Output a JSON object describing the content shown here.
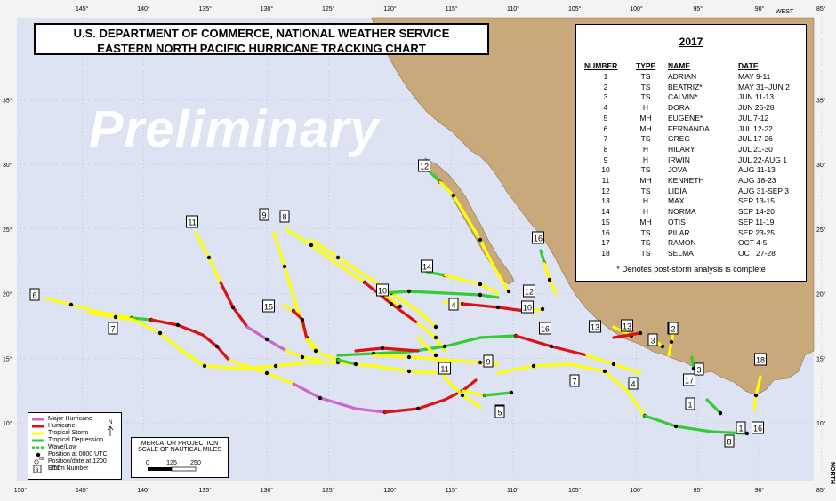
{
  "header": {
    "line1": "U.S. DEPARTMENT OF COMMERCE, NATIONAL WEATHER SERVICE",
    "line2": "EASTERN NORTH PACIFIC HURRICANE TRACKING CHART"
  },
  "watermark": "Preliminary",
  "season": {
    "year": "2017",
    "columns": [
      "NUMBER",
      "TYPE",
      "NAME",
      "DATE"
    ],
    "storms": [
      {
        "number": "1",
        "type": "TS",
        "name": "ADRIAN",
        "date": "MAY 9-11"
      },
      {
        "number": "2",
        "type": "TS",
        "name": "BEATRIZ*",
        "date": "MAY 31–JUN 2"
      },
      {
        "number": "3",
        "type": "TS",
        "name": "CALVIN*",
        "date": "JUN 11-13"
      },
      {
        "number": "4",
        "type": "H",
        "name": "DORA",
        "date": "JUN 25-28"
      },
      {
        "number": "5",
        "type": "MH",
        "name": "EUGENE*",
        "date": "JUL 7-12"
      },
      {
        "number": "6",
        "type": "MH",
        "name": "FERNANDA",
        "date": "JUL 12-22"
      },
      {
        "number": "7",
        "type": "TS",
        "name": "GREG",
        "date": "JUL 17-26"
      },
      {
        "number": "8",
        "type": "H",
        "name": "HILARY",
        "date": "JUL 21-30"
      },
      {
        "number": "9",
        "type": "H",
        "name": "IRWIN",
        "date": "JUL 22-AUG 1"
      },
      {
        "number": "10",
        "type": "TS",
        "name": "JOVA",
        "date": "AUG 11-13"
      },
      {
        "number": "11",
        "type": "MH",
        "name": "KENNETH",
        "date": "AUG 18-23"
      },
      {
        "number": "12",
        "type": "TS",
        "name": "LIDIA",
        "date": "AUG 31-SEP 3"
      },
      {
        "number": "13",
        "type": "H",
        "name": "MAX",
        "date": "SEP 13-15"
      },
      {
        "number": "14",
        "type": "H",
        "name": "NORMA",
        "date": "SEP 14-20"
      },
      {
        "number": "15",
        "type": "MH",
        "name": "OTIS",
        "date": "SEP 11-19"
      },
      {
        "number": "16",
        "type": "TS",
        "name": "PILAR",
        "date": "SEP 23-25"
      },
      {
        "number": "17",
        "type": "TS",
        "name": "RAMON",
        "date": "OCT 4-5"
      },
      {
        "number": "18",
        "type": "TS",
        "name": "SELMA",
        "date": "OCT 27-28"
      }
    ],
    "footnote": "* Denotes post-storm analysis is complete"
  },
  "key": {
    "items": [
      "Major Hurricane",
      "Hurricane",
      "Tropical Storm",
      "Tropical Depression",
      "Wave/Low",
      "Position at 0000 UTC",
      "Position/date at 1200 UTC",
      "Storm Number"
    ],
    "colors": {
      "major": "#cc66cc",
      "hurricane": "#dd1111",
      "storm": "#ffff00",
      "depression": "#33cc33",
      "wave": "#33cc33"
    },
    "date_sample": "08",
    "number_sample": "8",
    "north_letter": "N"
  },
  "scale": {
    "title1": "MERCATOR PROJECTION",
    "title2": "SCALE OF NAUTICAL MILES",
    "ticks": [
      "0",
      "125",
      "250"
    ]
  },
  "axes": {
    "lon_labels": [
      "150°",
      "145°",
      "140°",
      "135°",
      "130°",
      "125°",
      "120°",
      "115°",
      "110°",
      "105°",
      "100°",
      "95°",
      "90°",
      "85°"
    ],
    "lat_labels": [
      "35°",
      "30°",
      "25°",
      "20°",
      "15°",
      "10°"
    ],
    "west": "WEST",
    "north": "NORTH"
  },
  "colors": {
    "ocean": "#dde3f3",
    "land": "#c9a97c",
    "grid": "#a9b3d0"
  }
}
